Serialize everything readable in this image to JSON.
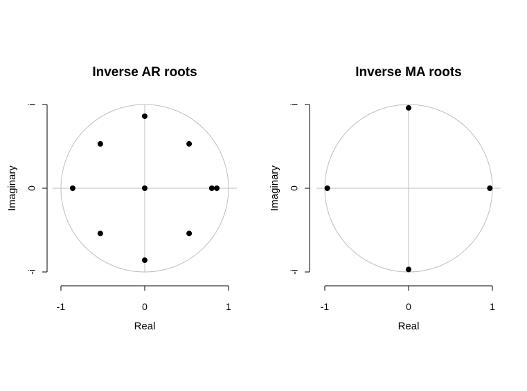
{
  "chart_data": [
    {
      "type": "scatter",
      "title": "Inverse AR roots",
      "xlabel": "Real",
      "ylabel": "Imaginary",
      "xlim": [
        -1,
        1
      ],
      "ylim": [
        -1,
        1
      ],
      "x_ticks": [
        "-1",
        "0",
        "1"
      ],
      "y_ticks": [
        "-i",
        "0",
        "i"
      ],
      "unit_circle": true,
      "points": [
        {
          "x": 0.0,
          "y": 0.86
        },
        {
          "x": -0.53,
          "y": 0.53
        },
        {
          "x": 0.53,
          "y": 0.53
        },
        {
          "x": -0.86,
          "y": 0.0
        },
        {
          "x": 0.0,
          "y": 0.0
        },
        {
          "x": 0.8,
          "y": 0.0
        },
        {
          "x": 0.86,
          "y": 0.0
        },
        {
          "x": -0.53,
          "y": -0.54
        },
        {
          "x": 0.53,
          "y": -0.54
        },
        {
          "x": 0.0,
          "y": -0.86
        }
      ]
    },
    {
      "type": "scatter",
      "title": "Inverse MA roots",
      "xlabel": "Real",
      "ylabel": "Imaginary",
      "xlim": [
        -1,
        1
      ],
      "ylim": [
        -1,
        1
      ],
      "x_ticks": [
        "-1",
        "0",
        "1"
      ],
      "y_ticks": [
        "-i",
        "0",
        "i"
      ],
      "unit_circle": true,
      "points": [
        {
          "x": 0.0,
          "y": 0.96
        },
        {
          "x": -0.97,
          "y": 0.0
        },
        {
          "x": 0.97,
          "y": 0.0
        },
        {
          "x": 0.0,
          "y": -0.97
        }
      ]
    }
  ]
}
